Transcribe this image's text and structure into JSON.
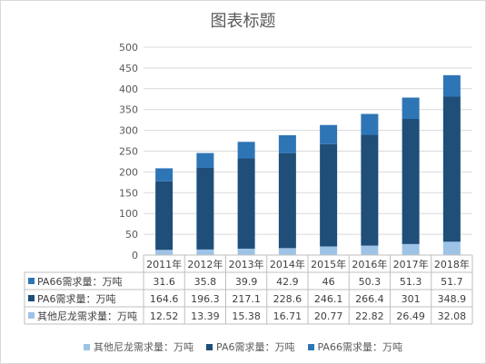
{
  "chart_data": {
    "type": "bar",
    "stacked": true,
    "title": "图表标题",
    "categories": [
      "2011年",
      "2012年",
      "2013年",
      "2014年",
      "2015年",
      "2016年",
      "2017年",
      "2018年"
    ],
    "series": [
      {
        "name": "其他尼龙需求量：万吨",
        "color": "#9dc3e6",
        "values": [
          12.52,
          13.39,
          15.38,
          16.71,
          20.77,
          22.82,
          26.49,
          32.08
        ],
        "labels": [
          "12.52",
          "13.39",
          "15.38",
          "16.71",
          "20.77",
          "22.82",
          "26.49",
          "32.08"
        ]
      },
      {
        "name": "PA6需求量：万吨",
        "color": "#1f4e79",
        "values": [
          164.6,
          196.3,
          217.1,
          228.6,
          246.1,
          266.4,
          301,
          348.9
        ],
        "labels": [
          "164.6",
          "196.3",
          "217.1",
          "228.6",
          "246.1",
          "266.4",
          "301",
          "348.9"
        ]
      },
      {
        "name": "PA66需求量：万吨",
        "color": "#2e75b6",
        "values": [
          31.6,
          35.8,
          39.9,
          42.9,
          46,
          50.3,
          51.3,
          51.7
        ],
        "labels": [
          "31.6",
          "35.8",
          "39.9",
          "42.9",
          "46",
          "50.3",
          "51.3",
          "51.7"
        ]
      }
    ],
    "ylim": [
      0,
      500
    ],
    "yticks": [
      "0",
      "50",
      "100",
      "150",
      "200",
      "250",
      "300",
      "350",
      "400",
      "450",
      "500"
    ],
    "grid": true,
    "legend_position": "bottom",
    "table_row_order": [
      2,
      1,
      0
    ]
  }
}
